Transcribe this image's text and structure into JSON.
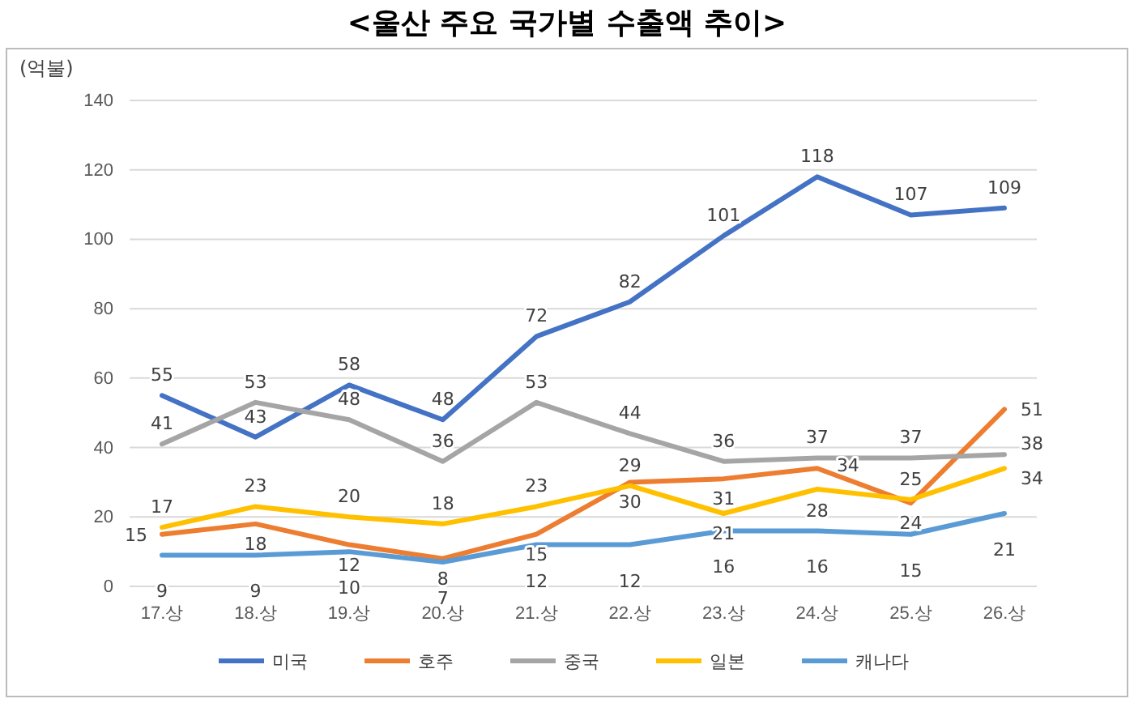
{
  "chart_data": {
    "type": "line",
    "title": "<울산 주요 국가별 수출액 추이>",
    "ylabel": "(억불)",
    "categories": [
      "17.상",
      "18.상",
      "19.상",
      "20.상",
      "21.상",
      "22.상",
      "23.상",
      "24.상",
      "25.상",
      "26.상"
    ],
    "series": [
      {
        "name": "미국",
        "color": "#4472c4",
        "values": [
          55,
          43,
          58,
          48,
          72,
          82,
          101,
          118,
          107,
          109
        ]
      },
      {
        "name": "호주",
        "color": "#ed7d31",
        "values": [
          15,
          18,
          12,
          8,
          15,
          30,
          31,
          34,
          24,
          51
        ]
      },
      {
        "name": "중국",
        "color": "#a5a5a5",
        "values": [
          41,
          53,
          48,
          36,
          53,
          44,
          36,
          37,
          37,
          38
        ]
      },
      {
        "name": "일본",
        "color": "#ffc000",
        "values": [
          17,
          23,
          20,
          18,
          23,
          29,
          21,
          28,
          25,
          34
        ]
      },
      {
        "name": "캐나다",
        "color": "#5b9bd5",
        "values": [
          9,
          9,
          10,
          7,
          12,
          12,
          16,
          16,
          15,
          21
        ]
      }
    ],
    "ylim": [
      0,
      140
    ],
    "yticks": [
      0,
      20,
      40,
      60,
      80,
      100,
      120,
      140
    ],
    "grid": "y",
    "legend": "bottom",
    "data_labels": true,
    "marker": "none",
    "line_style": "solid"
  }
}
